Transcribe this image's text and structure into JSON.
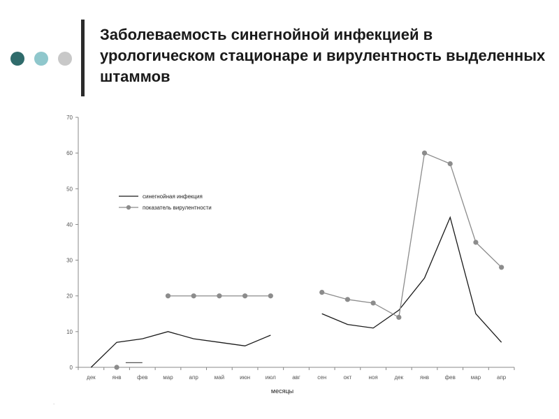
{
  "slide": {
    "title": "Заболеваемость синегнойной инфекцией в урологическом стационаре и вирулентность выделенных штаммов",
    "footnote": "."
  },
  "decor": {
    "dot_colors": [
      "#2f6b6b",
      "#8fc7cc",
      "#c8c8c8"
    ],
    "accent_bar": "#2b2b2b"
  },
  "chart_data": {
    "type": "line",
    "xlabel": "месяцы",
    "ylabel": "",
    "ylim": [
      0,
      70
    ],
    "yticks": [
      0,
      10,
      20,
      30,
      40,
      50,
      60,
      70
    ],
    "categories": [
      "дек",
      "янв",
      "фев",
      "мар",
      "апр",
      "май",
      "июн",
      "июл",
      "авг",
      "сен",
      "окт",
      "ноя",
      "дек",
      "янв",
      "фев",
      "мар",
      "апр"
    ],
    "grid": false,
    "legend_position": "upper-left",
    "series": [
      {
        "name": "синегнойная инфекция",
        "color": "#1a1a1a",
        "marker": "none",
        "values": [
          0,
          7,
          8,
          10,
          8,
          7,
          6,
          9,
          null,
          15,
          12,
          11,
          16,
          25,
          42,
          15,
          7
        ]
      },
      {
        "name": "показатель вирулентности",
        "color": "#8c8c8c",
        "marker": "circle",
        "values": [
          null,
          0,
          null,
          20,
          20,
          20,
          20,
          20,
          null,
          21,
          19,
          18,
          14,
          60,
          57,
          35,
          28
        ]
      }
    ],
    "annotations": [
      {
        "type": "segment",
        "x_from": 1.35,
        "x_to": 2.0,
        "y": 1.3,
        "color": "#555555"
      }
    ]
  }
}
